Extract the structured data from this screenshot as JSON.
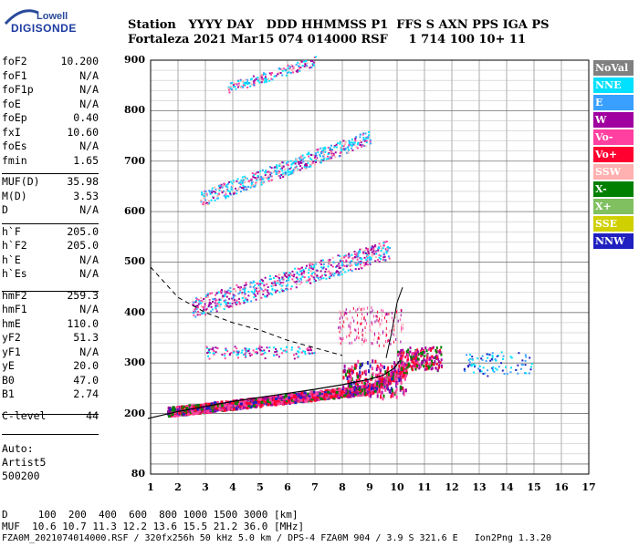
{
  "logo": {
    "line1": "Lowell",
    "line2": "DIGISONDE"
  },
  "header": {
    "row1": "Station   YYYY DAY   DDD HHMMSS P1  FFS S AXN PPS IGA PS",
    "row2": "Fortaleza 2021 Mar15 074 014000 RSF     1 714 100 10+ 11"
  },
  "params": [
    {
      "name": "foF2",
      "value": "10.200"
    },
    {
      "name": "foF1",
      "value": "N/A"
    },
    {
      "name": "foF1p",
      "value": "N/A"
    },
    {
      "name": "foE",
      "value": "N/A"
    },
    {
      "name": "foEp",
      "value": "0.40"
    },
    {
      "name": "fxI",
      "value": "10.60"
    },
    {
      "name": "foEs",
      "value": "N/A"
    },
    {
      "name": "fmin",
      "value": "1.65"
    },
    {
      "name": "MUF(D)",
      "value": "35.98"
    },
    {
      "name": "M(D)",
      "value": "3.53"
    },
    {
      "name": "D",
      "value": "N/A"
    },
    {
      "name": "h`F",
      "value": "205.0"
    },
    {
      "name": "h`F2",
      "value": "205.0"
    },
    {
      "name": "h`E",
      "value": "N/A"
    },
    {
      "name": "h`Es",
      "value": "N/A"
    },
    {
      "name": "hmF2",
      "value": "259.3"
    },
    {
      "name": "hmF1",
      "value": "N/A"
    },
    {
      "name": "hmE",
      "value": "110.0"
    },
    {
      "name": "yF2",
      "value": "51.3"
    },
    {
      "name": "yF1",
      "value": "N/A"
    },
    {
      "name": "yE",
      "value": "20.0"
    },
    {
      "name": "B0",
      "value": "47.0"
    },
    {
      "name": "B1",
      "value": "2.74"
    },
    {
      "name": "C-level",
      "value": "44"
    }
  ],
  "auto": {
    "line1": "Auto:",
    "line2": "Artist5",
    "line3": "500200"
  },
  "legend": [
    {
      "label": "NoVal",
      "bg": "#808080",
      "fg": "#ffffff"
    },
    {
      "label": "NNE",
      "bg": "#00e0ff",
      "fg": "#ffffff"
    },
    {
      "label": "E",
      "bg": "#3aa0ff",
      "fg": "#ffffff"
    },
    {
      "label": "W",
      "bg": "#a000a0",
      "fg": "#ffffff"
    },
    {
      "label": "Vo-",
      "bg": "#ff40a0",
      "fg": "#ffffff"
    },
    {
      "label": "Vo+",
      "bg": "#ff0030",
      "fg": "#ffffff"
    },
    {
      "label": "SSW",
      "bg": "#ffb0b0",
      "fg": "#ffffff"
    },
    {
      "label": "X-",
      "bg": "#008000",
      "fg": "#ffffff"
    },
    {
      "label": "X+",
      "bg": "#80c060",
      "fg": "#ffffff"
    },
    {
      "label": "SSE",
      "bg": "#d0d000",
      "fg": "#ffffff"
    },
    {
      "label": "NNW",
      "bg": "#2020c0",
      "fg": "#ffffff"
    }
  ],
  "chart_data": {
    "type": "scatter",
    "xlim": [
      1,
      17
    ],
    "x_ticks": [
      "1",
      "2",
      "3",
      "4",
      "5",
      "6",
      "7",
      "8",
      "9",
      "10",
      "11",
      "12",
      "13",
      "14",
      "15",
      "16",
      "17"
    ],
    "y_ticks": [
      "80",
      "200",
      "300",
      "400",
      "500",
      "600",
      "700",
      "800",
      "900"
    ],
    "ylim": [
      80,
      900
    ],
    "grid": true,
    "profile_curve": {
      "x": [
        0.9,
        2,
        3,
        4,
        5,
        6,
        7,
        8,
        9,
        9.5,
        9.9,
        10.1
      ],
      "y": [
        190,
        204,
        214,
        224,
        232,
        240,
        248,
        257,
        268,
        276,
        290,
        305
      ]
    },
    "dashed_curve": {
      "x": [
        1,
        2,
        3,
        4,
        5,
        6,
        7,
        8
      ],
      "y": [
        490,
        430,
        400,
        380,
        365,
        345,
        330,
        315
      ]
    },
    "trace_cusp": {
      "x": [
        9.6,
        9.8,
        10.0,
        10.2
      ],
      "y": [
        310,
        360,
        420,
        450
      ]
    }
  },
  "footer": {
    "row1": "D     100  200  400  600  800 1000 1500 3000 [km]",
    "row2": "MUF  10.6 10.7 11.3 12.2 13.6 15.5 21.2 36.0 [MHz]",
    "row3": "FZA0M_2021074014000.RSF / 320fx256h 50 kHz 5.0 km / DPS-4 FZA0M 904 / 3.9 S 321.6 E   Ion2Png 1.3.20"
  }
}
